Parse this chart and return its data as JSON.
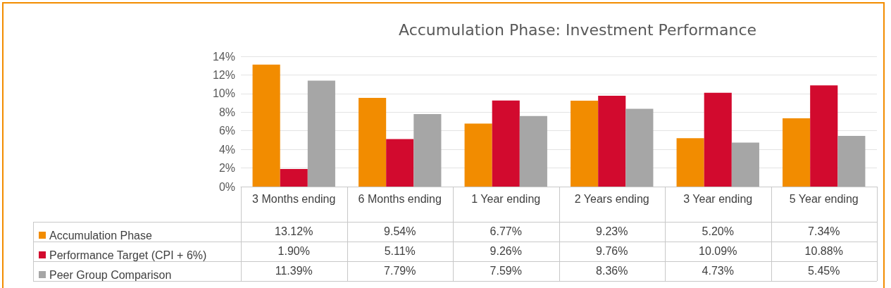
{
  "chart_data": {
    "type": "bar",
    "title": "Accumulation Phase: Investment Performance",
    "categories": [
      "3 Months ending",
      "6 Months ending",
      "1 Year ending",
      "2 Years ending",
      "3 Year ending",
      "5 Year ending"
    ],
    "series": [
      {
        "name": "Accumulation Phase",
        "color": "#f28c00",
        "values": [
          13.12,
          9.54,
          6.77,
          9.23,
          5.2,
          7.34
        ],
        "value_labels": [
          "13.12%",
          "9.54%",
          "6.77%",
          "9.23%",
          "5.20%",
          "7.34%"
        ]
      },
      {
        "name": "Performance Target (CPI + 6%)",
        "color": "#d20a2e",
        "values": [
          1.9,
          5.11,
          9.26,
          9.76,
          10.09,
          10.88
        ],
        "value_labels": [
          "1.90%",
          "5.11%",
          "9.26%",
          "9.76%",
          "10.09%",
          "10.88%"
        ]
      },
      {
        "name": "Peer Group Comparison",
        "color": "#a6a6a6",
        "values": [
          11.39,
          7.79,
          7.59,
          8.36,
          4.73,
          5.45
        ],
        "value_labels": [
          "11.39%",
          "7.79%",
          "7.59%",
          "8.36%",
          "4.73%",
          "5.45%"
        ]
      }
    ],
    "ylim": [
      0,
      14
    ],
    "yticks": [
      {
        "value": 0,
        "label": "0%"
      },
      {
        "value": 2,
        "label": "2%"
      },
      {
        "value": 4,
        "label": "4%"
      },
      {
        "value": 6,
        "label": "6%"
      },
      {
        "value": 8,
        "label": "8%"
      },
      {
        "value": 10,
        "label": "10%"
      },
      {
        "value": 12,
        "label": "12%"
      },
      {
        "value": 14,
        "label": "14%"
      }
    ],
    "grid": "y",
    "legend": "bottom left"
  }
}
